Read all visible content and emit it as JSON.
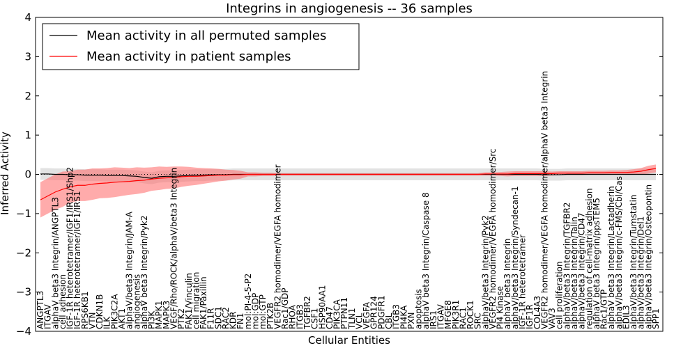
{
  "chart_data": {
    "type": "line",
    "title": "Integrins in angiogenesis -- 36 samples",
    "xlabel": "Cellular Entities",
    "ylabel": "Inferred Activity",
    "ylim": [
      -4,
      4
    ],
    "yticks": [
      -4,
      -3,
      -2,
      -1,
      0,
      1,
      2,
      3,
      4
    ],
    "legend_position": "top-left",
    "colors": {
      "permuted": "#000000",
      "patient": "#ff0000",
      "permuted_band": "#bfbfbf",
      "patient_band": "#ff6666"
    },
    "categories": [
      "ANGPTL3",
      "ITGAV",
      "alphaV beta3 Integrin/ANGPTL3",
      "cell adhesion",
      "IGF-1R heterotetramer/IGF1/IRS1/Shp2",
      "IGF-1R heterotetramer/IGF1/IRS1",
      "RPS6KB1",
      "VTN",
      "CDKN1B",
      "ILK",
      "PIK3C2A",
      "AKT1",
      "alphaV/beta3 Integrin/JAM-A",
      "angiogenesis",
      "alphaV beta3 Integrin/Pyk2",
      "PI3K",
      "MAPK1",
      "MAPK3",
      "VEGF/Rho/ROCK/alphaV/beta3 Integrin",
      "PTK2",
      "FAK1/Vinculin",
      "cell migration",
      "FAK1/Paxillin",
      "F11R",
      "SDC1",
      "RAC2",
      "KDR",
      "FN1",
      "mol:PI-4-5-P2",
      "mol:GDP",
      "mol:GTP",
      "PTK2B",
      "VEGFR2 homodimer/VEGFA homodimer",
      "Rac1/GDP",
      "RHOA",
      "ITGB3",
      "TGFBR2",
      "CSF1",
      "HSP90AA1",
      "CD47",
      "PIK3CA",
      "PTPN11",
      "TLN1",
      "VCL",
      "VEGFA",
      "GPR124",
      "PDGFR1",
      "CBL",
      "ITGB3",
      "PI4KA",
      "PXN",
      "apoptosis",
      "alphaV beta3 Integrin/Caspase 8",
      "IRS1",
      "ITGAV",
      "MFGE8",
      "PIK3R1",
      "RAC1",
      "ROCK1",
      "SRC",
      "alphaV/beta3 Integrin/Pyk2",
      "VEGFR2 homodimer/VEGFA homodimer/Src",
      "PI4 Kinase",
      "alphaV beta3 Integrin",
      "alphaV/beta3 Integrin/Syndecan-1",
      "IGF-1R heterotetramer",
      "IGF1R",
      "COL4A3",
      "VEGFR2 homodimer/VEGFA homodimer/alphaV beta3 Integrin",
      "VAV3",
      "cell proliferation",
      "alphaV/beta3 Integrin/TGFBR2",
      "alphaV/beta3 Integrin/Talin",
      "alphaV/beta3 Integrin/CD47",
      "regulation of cell-matrix adhesion",
      "alphaV beta3 Integrin/ppsTEM5",
      "Rac1/GTP",
      "alphaV beta3 Integrin/Lactadherin",
      "alphaV/beta3 Integrin/c-FMS/Cbl/Cas",
      "EDIL3",
      "alphaV/beta3 Integrin/Tumstatin",
      "alphaV/beta3 Integrin/Del1",
      "alphaV/beta3 Integrin/Osteopontin",
      "SPP1"
    ],
    "series": [
      {
        "name": "Mean activity in all permuted samples",
        "values": [
          0.01,
          0.01,
          0.0,
          0.0,
          -0.01,
          -0.01,
          -0.02,
          -0.02,
          -0.02,
          -0.03,
          -0.03,
          -0.03,
          -0.04,
          -0.05,
          -0.08,
          -0.1,
          -0.06,
          -0.05,
          -0.05,
          -0.04,
          -0.03,
          -0.02,
          -0.02,
          -0.01,
          -0.01,
          -0.01,
          0.0,
          0.0,
          0.0,
          0.0,
          0.0,
          0.0,
          0.0,
          0.0,
          0.0,
          0.0,
          0.0,
          0.0,
          0.0,
          0.0,
          0.0,
          0.0,
          0.0,
          0.0,
          0.0,
          0.0,
          0.0,
          0.0,
          0.0,
          0.0,
          0.0,
          0.0,
          0.0,
          0.0,
          0.0,
          0.0,
          0.0,
          0.0,
          0.0,
          0.0,
          0.0,
          0.0,
          0.0,
          0.0,
          0.0,
          0.0,
          0.0,
          0.0,
          -0.01,
          -0.01,
          -0.01,
          0.0,
          0.0,
          0.0,
          0.0,
          0.0,
          0.0,
          0.0,
          0.0,
          0.0,
          0.0,
          0.0,
          0.0,
          0.0
        ],
        "band": [
          0.15,
          0.15,
          0.15,
          0.15,
          0.15,
          0.15,
          0.15,
          0.15,
          0.15,
          0.15,
          0.15,
          0.15,
          0.15,
          0.15,
          0.15,
          0.15,
          0.15,
          0.15,
          0.15,
          0.15,
          0.15,
          0.15,
          0.15,
          0.15,
          0.15,
          0.15,
          0.15,
          0.15,
          0.15,
          0.15,
          0.15,
          0.15,
          0.15,
          0.15,
          0.15,
          0.15,
          0.15,
          0.15,
          0.15,
          0.15,
          0.15,
          0.15,
          0.15,
          0.15,
          0.15,
          0.15,
          0.15,
          0.15,
          0.15,
          0.15,
          0.15,
          0.15,
          0.15,
          0.15,
          0.15,
          0.15,
          0.15,
          0.15,
          0.15,
          0.15,
          0.15,
          0.15,
          0.15,
          0.15,
          0.15,
          0.15,
          0.15,
          0.15,
          0.15,
          0.15,
          0.15,
          0.15,
          0.15,
          0.15,
          0.15,
          0.15,
          0.15,
          0.15,
          0.15,
          0.15,
          0.15,
          0.15,
          0.15,
          0.15
        ]
      },
      {
        "name": "Mean activity in patient samples",
        "values": [
          -0.65,
          -0.55,
          -0.45,
          -0.38,
          -0.32,
          -0.28,
          -0.28,
          -0.25,
          -0.23,
          -0.22,
          -0.2,
          -0.19,
          -0.18,
          -0.16,
          -0.15,
          -0.12,
          -0.1,
          -0.09,
          -0.08,
          -0.06,
          -0.05,
          -0.05,
          -0.04,
          -0.03,
          -0.02,
          -0.02,
          -0.01,
          -0.01,
          0.0,
          0.0,
          0.0,
          0.0,
          0.0,
          0.0,
          0.0,
          0.0,
          0.0,
          0.0,
          0.0,
          0.0,
          0.0,
          0.0,
          0.0,
          0.0,
          0.0,
          0.0,
          0.0,
          0.0,
          0.0,
          0.0,
          0.0,
          0.0,
          0.0,
          0.0,
          0.0,
          0.0,
          0.0,
          0.0,
          0.0,
          0.0,
          0.01,
          0.01,
          0.01,
          0.01,
          0.02,
          0.02,
          0.02,
          0.02,
          0.02,
          0.02,
          0.03,
          0.03,
          0.03,
          0.03,
          0.04,
          0.04,
          0.04,
          0.05,
          0.05,
          0.05,
          0.06,
          0.08,
          0.12,
          0.15
        ],
        "band": [
          0.45,
          0.45,
          0.45,
          0.45,
          0.4,
          0.4,
          0.4,
          0.4,
          0.38,
          0.38,
          0.38,
          0.36,
          0.34,
          0.34,
          0.32,
          0.3,
          0.3,
          0.28,
          0.28,
          0.26,
          0.24,
          0.22,
          0.2,
          0.18,
          0.16,
          0.14,
          0.12,
          0.1,
          0.05,
          0.05,
          0.04,
          0.04,
          0.03,
          0.03,
          0.03,
          0.03,
          0.03,
          0.03,
          0.03,
          0.03,
          0.03,
          0.03,
          0.03,
          0.03,
          0.03,
          0.03,
          0.03,
          0.03,
          0.03,
          0.03,
          0.03,
          0.03,
          0.03,
          0.03,
          0.03,
          0.03,
          0.03,
          0.03,
          0.03,
          0.03,
          0.04,
          0.04,
          0.05,
          0.06,
          0.06,
          0.06,
          0.06,
          0.06,
          0.06,
          0.05,
          0.05,
          0.05,
          0.05,
          0.05,
          0.05,
          0.05,
          0.05,
          0.05,
          0.05,
          0.06,
          0.07,
          0.08,
          0.1,
          0.1
        ]
      }
    ]
  }
}
